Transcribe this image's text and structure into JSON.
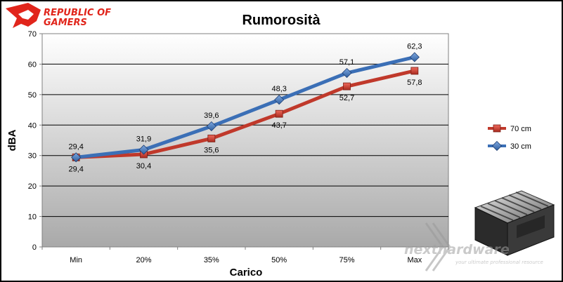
{
  "branding": {
    "logo_line1": "REPUBLIC OF",
    "logo_line2": "GAMERS",
    "watermark_main": "nexthardware",
    "watermark_sub": "your ultimate professional resource"
  },
  "colors": {
    "series_70cm": "#c0392b",
    "series_30cm": "#3b6fb6",
    "logo_red": "#e1251b"
  },
  "chart_data": {
    "type": "line",
    "title": "Rumorosità",
    "xlabel": "Carico",
    "ylabel": "dBA",
    "ylim": [
      0,
      70
    ],
    "yticks": [
      "0",
      "10",
      "20",
      "30",
      "40",
      "50",
      "60",
      "70"
    ],
    "categories": [
      "Min",
      "20%",
      "35%",
      "50%",
      "75%",
      "Max"
    ],
    "grid": true,
    "legend_position": "right",
    "series": [
      {
        "name": "70 cm",
        "marker": "square",
        "values": [
          29.4,
          30.4,
          35.6,
          43.7,
          52.7,
          57.8
        ],
        "labels": [
          "29,4",
          "30,4",
          "35,6",
          "43,7",
          "52,7",
          "57,8"
        ]
      },
      {
        "name": "30 cm",
        "marker": "diamond",
        "values": [
          29.4,
          31.9,
          39.6,
          48.3,
          57.1,
          62.3
        ],
        "labels": [
          "29,4",
          "31,9",
          "39,6",
          "48,3",
          "57,1",
          "62,3"
        ]
      }
    ]
  }
}
